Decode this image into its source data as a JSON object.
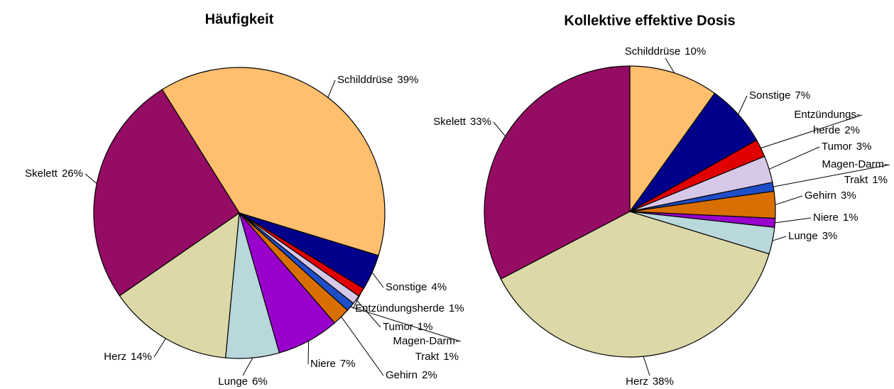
{
  "chart_data": [
    {
      "type": "pie",
      "title": "Häufigkeit",
      "categories": [
        "Schilddrüse",
        "Sonstige",
        "Entzündungsherde",
        "Tumor",
        "Magen-Darm-Trakt",
        "Gehirn",
        "Niere",
        "Lunge",
        "Herz",
        "Skelett"
      ],
      "values": [
        39,
        4,
        1,
        1,
        1,
        2,
        7,
        6,
        14,
        26
      ],
      "value_labels": [
        "39%",
        "4%",
        "1%",
        "1%",
        "1%",
        "2%",
        "7%",
        "6%",
        "14%",
        "26%"
      ],
      "colors": [
        "#ffbf6e",
        "#00008b",
        "#e00000",
        "#d8c8e8",
        "#1f4fc8",
        "#d96f00",
        "#9900cc",
        "#b8d8dc",
        "#ddd8a8",
        "#940c64"
      ]
    },
    {
      "type": "pie",
      "title": "Kollektive effektive Dosis",
      "categories": [
        "Schilddrüse",
        "Sonstige",
        "Entzündungs-herde",
        "Tumor",
        "Magen-Darm-Trakt",
        "Gehirn",
        "Niere",
        "Lunge",
        "Herz",
        "Skelett"
      ],
      "values": [
        10,
        7,
        2,
        3,
        1,
        3,
        1,
        3,
        38,
        33
      ],
      "value_labels": [
        "10%",
        "7%",
        "2%",
        "3%",
        "1%",
        "3%",
        "1%",
        "3%",
        "38%",
        "33%"
      ],
      "colors": [
        "#ffbf6e",
        "#00008b",
        "#e00000",
        "#d8c8e8",
        "#1f4fc8",
        "#d96f00",
        "#9900cc",
        "#b8d8dc",
        "#ddd8a8",
        "#940c64"
      ]
    }
  ]
}
